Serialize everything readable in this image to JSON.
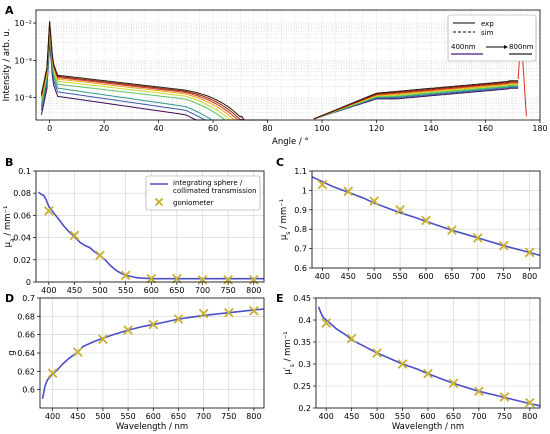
{
  "chart_data": [
    {
      "panel": "A",
      "type": "line",
      "xlabel": "Angle / °",
      "ylabel": "Intensity / arb. u.",
      "xlim": [
        -5,
        180
      ],
      "ylim_log10": [
        -4.6,
        -1.65
      ],
      "xticks": [
        "0",
        "20",
        "40",
        "60",
        "80",
        "100",
        "120",
        "140",
        "160",
        "180"
      ],
      "yticks": [
        "10⁻⁴",
        "10⁻³",
        "10⁻²"
      ],
      "y_scale": "log",
      "grid": true,
      "legend": {
        "position": "top-right",
        "entries": [
          "exp",
          "sim"
        ],
        "range_label_start": "400nm",
        "range_label_end": "800nm"
      },
      "series_colors": [
        "#3d0a54",
        "#3b5aa8",
        "#2a9a8a",
        "#5cc060",
        "#c8d820",
        "#e8a020",
        "#d83018",
        "#8b2000",
        "#2a1a10"
      ],
      "series_level_decades": [
        -0.8,
        -0.68,
        -0.58,
        -0.48,
        -0.4,
        -0.34,
        -0.3,
        -0.27,
        -0.24
      ],
      "x": [
        -3,
        -1,
        0,
        1,
        3,
        5,
        15,
        30,
        45,
        55,
        62,
        68,
        72,
        75,
        78,
        80,
        97,
        100,
        110,
        120,
        130,
        140,
        150,
        160,
        168,
        171,
        173
      ]
    },
    {
      "panel": "B",
      "type": "line+scatter",
      "xlabel": "",
      "ylabel": "μa / mm⁻¹",
      "ylabel_main": "μ",
      "ylabel_sub": "a",
      "ylabel_unit": " / mm⁻¹",
      "xlim": [
        375,
        820
      ],
      "ylim": [
        0,
        0.1
      ],
      "xticks": [
        "400",
        "450",
        "500",
        "550",
        "600",
        "650",
        "700",
        "750",
        "800"
      ],
      "yticks": [
        "0",
        "0.02",
        "0.04",
        "0.06",
        "0.08",
        "0.1"
      ],
      "grid": true,
      "legend": {
        "position": "top-right",
        "line_label_1": "integrating sphere /",
        "line_label_2": "collimated transmission",
        "marker_label": "goniometer"
      },
      "line": {
        "x": [
          380,
          385,
          390,
          395,
          400,
          410,
          420,
          430,
          440,
          450,
          460,
          470,
          480,
          490,
          500,
          510,
          520,
          530,
          540,
          550,
          560,
          570,
          580,
          600,
          650,
          700,
          750,
          800,
          820
        ],
        "y": [
          0.081,
          0.079,
          0.078,
          0.074,
          0.068,
          0.062,
          0.056,
          0.05,
          0.045,
          0.041,
          0.036,
          0.033,
          0.031,
          0.027,
          0.024,
          0.02,
          0.015,
          0.011,
          0.008,
          0.006,
          0.005,
          0.004,
          0.0035,
          0.003,
          0.003,
          0.003,
          0.003,
          0.003,
          0.003
        ]
      },
      "markers": {
        "x": [
          400,
          450,
          500,
          550,
          600,
          650,
          700,
          750,
          800
        ],
        "y": [
          0.064,
          0.042,
          0.024,
          0.006,
          0.003,
          0.003,
          0.002,
          0.002,
          0.002
        ]
      }
    },
    {
      "panel": "C",
      "type": "line+scatter",
      "xlabel": "",
      "ylabel": "μs / mm⁻¹",
      "ylabel_main": "μ",
      "ylabel_sub": "s",
      "ylabel_unit": " / mm⁻¹",
      "xlim": [
        380,
        820
      ],
      "ylim": [
        0.6,
        1.1
      ],
      "xticks": [
        "400",
        "450",
        "500",
        "550",
        "600",
        "650",
        "700",
        "750",
        "800"
      ],
      "yticks": [
        "0.6",
        "0.7",
        "0.8",
        "0.9",
        "1",
        "1.1"
      ],
      "grid": true,
      "line": {
        "x": [
          380,
          400,
          420,
          450,
          480,
          500,
          520,
          550,
          580,
          600,
          650,
          700,
          750,
          800,
          820
        ],
        "y": [
          1.07,
          1.045,
          1.02,
          0.99,
          0.96,
          0.935,
          0.915,
          0.885,
          0.86,
          0.84,
          0.795,
          0.755,
          0.715,
          0.68,
          0.665
        ]
      },
      "markers": {
        "x": [
          400,
          450,
          500,
          550,
          600,
          650,
          700,
          750,
          800
        ],
        "y": [
          1.03,
          0.995,
          0.945,
          0.9,
          0.845,
          0.795,
          0.755,
          0.715,
          0.68
        ]
      }
    },
    {
      "panel": "D",
      "type": "line+scatter",
      "xlabel": "Wavelength / nm",
      "ylabel": "g",
      "xlim": [
        375,
        820
      ],
      "ylim": [
        0.58,
        0.7
      ],
      "xticks": [
        "400",
        "450",
        "500",
        "550",
        "600",
        "650",
        "700",
        "750",
        "800"
      ],
      "yticks": [
        "0.6",
        "0.62",
        "0.64",
        "0.66",
        "0.68",
        "0.7"
      ],
      "grid": true,
      "line": {
        "x": [
          380,
          385,
          390,
          395,
          400,
          410,
          420,
          430,
          440,
          450,
          460,
          480,
          500,
          520,
          550,
          580,
          600,
          650,
          700,
          750,
          800,
          820
        ],
        "y": [
          0.59,
          0.604,
          0.611,
          0.614,
          0.617,
          0.622,
          0.628,
          0.633,
          0.637,
          0.641,
          0.647,
          0.652,
          0.656,
          0.66,
          0.665,
          0.669,
          0.671,
          0.677,
          0.681,
          0.684,
          0.687,
          0.688
        ]
      },
      "markers": {
        "x": [
          400,
          450,
          500,
          550,
          600,
          650,
          700,
          750,
          800
        ],
        "y": [
          0.618,
          0.641,
          0.655,
          0.665,
          0.671,
          0.677,
          0.683,
          0.684,
          0.686
        ]
      }
    },
    {
      "panel": "E",
      "type": "line+scatter",
      "xlabel": "Wavelength / nm",
      "ylabel": "μ's / mm⁻¹",
      "ylabel_main": "μ′",
      "ylabel_sub": "s",
      "ylabel_unit": " / mm⁻¹",
      "xlim": [
        380,
        820
      ],
      "ylim": [
        0.2,
        0.45
      ],
      "xticks": [
        "400",
        "450",
        "500",
        "550",
        "600",
        "650",
        "700",
        "750",
        "800"
      ],
      "yticks": [
        "0.2",
        "0.25",
        "0.3",
        "0.35",
        "0.4",
        "0.45"
      ],
      "grid": true,
      "line": {
        "x": [
          385,
          390,
          395,
          400,
          410,
          420,
          440,
          450,
          470,
          500,
          530,
          550,
          580,
          600,
          650,
          700,
          750,
          800,
          820
        ],
        "y": [
          0.43,
          0.415,
          0.405,
          0.4,
          0.39,
          0.38,
          0.365,
          0.355,
          0.343,
          0.325,
          0.31,
          0.3,
          0.288,
          0.278,
          0.256,
          0.238,
          0.224,
          0.21,
          0.205
        ]
      },
      "markers": {
        "x": [
          400,
          450,
          500,
          550,
          600,
          650,
          700,
          750,
          800
        ],
        "y": [
          0.393,
          0.358,
          0.325,
          0.3,
          0.278,
          0.256,
          0.238,
          0.225,
          0.212
        ]
      }
    }
  ]
}
